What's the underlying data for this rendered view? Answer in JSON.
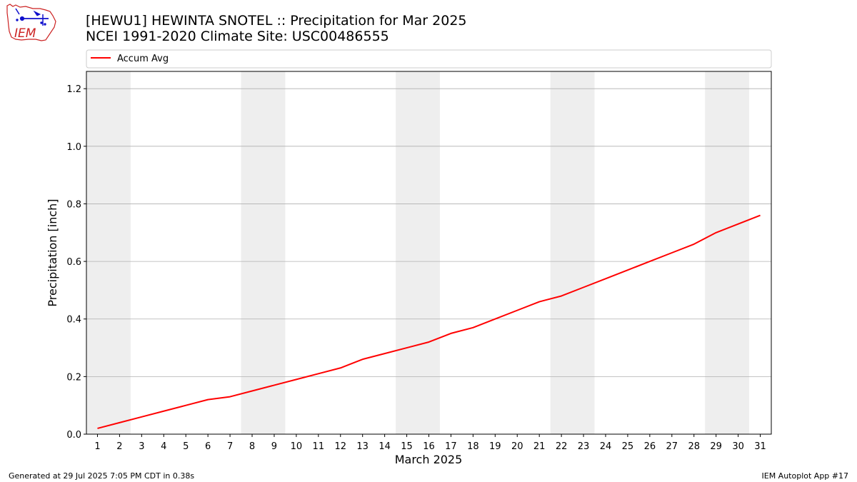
{
  "header": {
    "title_line1": "[HEWU1] HEWINTA SNOTEL :: Precipitation for Mar 2025",
    "title_line2": "NCEI 1991-2020 Climate Site: USC00486555",
    "logo_text": "IEM"
  },
  "footer": {
    "generated": "Generated at 29 Jul 2025 7:05 PM CDT in 0.38s",
    "app": "IEM Autoplot App #17"
  },
  "colors": {
    "series": "#ff0000",
    "weekend_band": "#eeeeee",
    "grid": "#b0b0b0",
    "logo_red": "#cc2222",
    "logo_blue": "#1010cc"
  },
  "chart_data": {
    "type": "line",
    "xlabel": "March 2025",
    "ylabel": "Precipitation [inch]",
    "xlim": [
      0.5,
      31.5
    ],
    "ylim": [
      0,
      1.26
    ],
    "x_ticks": [
      1,
      2,
      3,
      4,
      5,
      6,
      7,
      8,
      9,
      10,
      11,
      12,
      13,
      14,
      15,
      16,
      17,
      18,
      19,
      20,
      21,
      22,
      23,
      24,
      25,
      26,
      27,
      28,
      29,
      30,
      31
    ],
    "y_ticks": [
      0.0,
      0.2,
      0.4,
      0.6,
      0.8,
      1.0,
      1.2
    ],
    "y_tick_labels": [
      "0.0",
      "0.2",
      "0.4",
      "0.6",
      "0.8",
      "1.0",
      "1.2"
    ],
    "grid": "horizontal",
    "legend": {
      "placement": "top",
      "entries": [
        "Accum Avg"
      ]
    },
    "weekend_bands": [
      [
        1,
        2
      ],
      [
        8,
        9
      ],
      [
        15,
        16
      ],
      [
        22,
        23
      ],
      [
        29,
        30
      ]
    ],
    "series": [
      {
        "name": "Accum Avg",
        "x": [
          1,
          2,
          3,
          4,
          5,
          6,
          7,
          8,
          9,
          10,
          11,
          12,
          13,
          14,
          15,
          16,
          17,
          18,
          19,
          20,
          21,
          22,
          23,
          24,
          25,
          26,
          27,
          28,
          29,
          30,
          31
        ],
        "values": [
          0.02,
          0.04,
          0.06,
          0.08,
          0.1,
          0.12,
          0.13,
          0.15,
          0.17,
          0.19,
          0.21,
          0.23,
          0.26,
          0.28,
          0.3,
          0.32,
          0.35,
          0.37,
          0.4,
          0.43,
          0.46,
          0.48,
          0.51,
          0.54,
          0.57,
          0.6,
          0.63,
          0.66,
          0.7,
          0.73,
          0.76
        ]
      }
    ]
  }
}
